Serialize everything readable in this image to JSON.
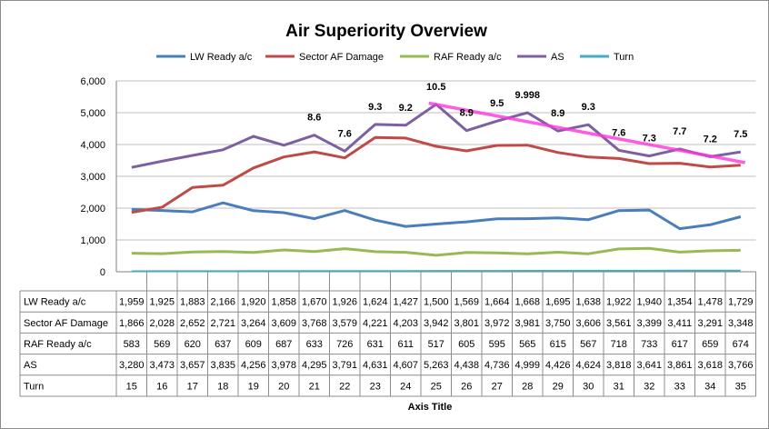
{
  "chart_data": {
    "type": "line",
    "title": "Air Superiority Overview",
    "xlabel": "Axis Title",
    "ylabel": "",
    "ylim": [
      0,
      6000
    ],
    "yticks": [
      "0",
      "1,000",
      "2,000",
      "3,000",
      "4,000",
      "5,000",
      "6,000"
    ],
    "ytick_values": [
      0,
      1000,
      2000,
      3000,
      4000,
      5000,
      6000
    ],
    "grid": "horizontal",
    "legend_position": "top",
    "categories": [
      "15",
      "16",
      "17",
      "18",
      "19",
      "20",
      "21",
      "22",
      "23",
      "24",
      "25",
      "26",
      "27",
      "28",
      "29",
      "30",
      "31",
      "32",
      "33",
      "34",
      "35"
    ],
    "series": [
      {
        "name": "LW Ready a/c",
        "color": "#4a7ebb",
        "values": [
          1959,
          1925,
          1883,
          2166,
          1920,
          1858,
          1670,
          1926,
          1624,
          1427,
          1500,
          1569,
          1664,
          1668,
          1695,
          1638,
          1922,
          1940,
          1354,
          1478,
          1729
        ],
        "labels": [
          "1,959",
          "1,925",
          "1,883",
          "2,166",
          "1,920",
          "1,858",
          "1,670",
          "1,926",
          "1,624",
          "1,427",
          "1,500",
          "1,569",
          "1,664",
          "1,668",
          "1,695",
          "1,638",
          "1,922",
          "1,940",
          "1,354",
          "1,478",
          "1,729"
        ]
      },
      {
        "name": "Sector AF Damage",
        "color": "#be4b48",
        "values": [
          1866,
          2028,
          2652,
          2721,
          3264,
          3609,
          3768,
          3579,
          4221,
          4203,
          3942,
          3801,
          3972,
          3981,
          3750,
          3606,
          3561,
          3399,
          3411,
          3291,
          3348
        ],
        "labels": [
          "1,866",
          "2,028",
          "2,652",
          "2,721",
          "3,264",
          "3,609",
          "3,768",
          "3,579",
          "4,221",
          "4,203",
          "3,942",
          "3,801",
          "3,972",
          "3,981",
          "3,750",
          "3,606",
          "3,561",
          "3,399",
          "3,411",
          "3,291",
          "3,348"
        ]
      },
      {
        "name": "RAF Ready a/c",
        "color": "#98b954",
        "values": [
          583,
          569,
          620,
          637,
          609,
          687,
          633,
          726,
          631,
          611,
          517,
          605,
          595,
          565,
          615,
          567,
          718,
          733,
          617,
          659,
          674
        ],
        "labels": [
          "583",
          "569",
          "620",
          "637",
          "609",
          "687",
          "633",
          "726",
          "631",
          "611",
          "517",
          "605",
          "595",
          "565",
          "615",
          "567",
          "718",
          "733",
          "617",
          "659",
          "674"
        ]
      },
      {
        "name": "AS",
        "color": "#7d60a0",
        "values": [
          3280,
          3473,
          3657,
          3835,
          4256,
          3978,
          4295,
          3791,
          4631,
          4607,
          5263,
          4438,
          4736,
          4999,
          4426,
          4624,
          3818,
          3641,
          3861,
          3618,
          3766
        ],
        "labels": [
          "3,280",
          "3,473",
          "3,657",
          "3,835",
          "4,256",
          "3,978",
          "4,295",
          "3,791",
          "4,631",
          "4,607",
          "5,263",
          "4,438",
          "4,736",
          "4,999",
          "4,426",
          "4,624",
          "3,818",
          "3,641",
          "3,861",
          "3,618",
          "3,766"
        ]
      },
      {
        "name": "Turn",
        "color": "#46aac5",
        "values": [
          15,
          16,
          17,
          18,
          19,
          20,
          21,
          22,
          23,
          24,
          25,
          26,
          27,
          28,
          29,
          30,
          31,
          32,
          33,
          34,
          35
        ],
        "labels": [
          "15",
          "16",
          "17",
          "18",
          "19",
          "20",
          "21",
          "22",
          "23",
          "24",
          "25",
          "26",
          "27",
          "28",
          "29",
          "30",
          "31",
          "32",
          "33",
          "34",
          "35"
        ]
      }
    ],
    "annotations": [
      {
        "category": "21",
        "text": "8.6",
        "y": 4295
      },
      {
        "category": "22",
        "text": "7.6",
        "y": 3791
      },
      {
        "category": "23",
        "text": "9.3",
        "y": 4631
      },
      {
        "category": "24",
        "text": "9.2",
        "y": 4607
      },
      {
        "category": "25",
        "text": "10.5",
        "y": 5263
      },
      {
        "category": "26",
        "text": "8.9",
        "y": 4438
      },
      {
        "category": "27",
        "text": "9.5",
        "y": 4736
      },
      {
        "category": "28",
        "text": "9.998",
        "y": 4999
      },
      {
        "category": "29",
        "text": "8.9",
        "y": 4426
      },
      {
        "category": "30",
        "text": "9.3",
        "y": 4624
      },
      {
        "category": "31",
        "text": "7.6",
        "y": 3818
      },
      {
        "category": "32",
        "text": "7.3",
        "y": 3641
      },
      {
        "category": "33",
        "text": "7.7",
        "y": 3861
      },
      {
        "category": "34",
        "text": "7.2",
        "y": 3618
      },
      {
        "category": "35",
        "text": "7.5",
        "y": 3766
      }
    ],
    "trendline": {
      "name": "AS trend",
      "color": "#ff33dd",
      "from": {
        "category": "25",
        "y": 5300
      },
      "to": {
        "category": "35",
        "y": 3430
      }
    }
  }
}
